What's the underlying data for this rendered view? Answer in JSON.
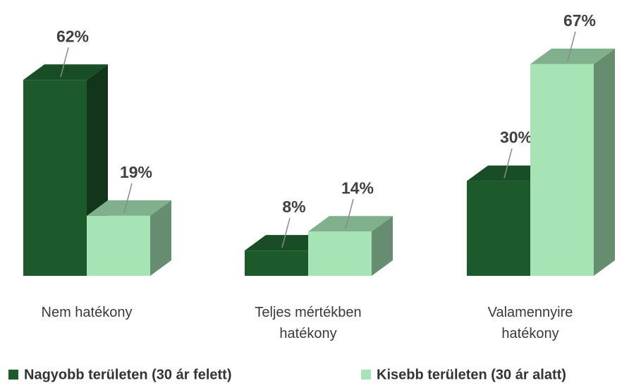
{
  "chart_data": {
    "type": "bar3d",
    "categories": [
      "Nem hatékony",
      "Teljes mértékben hatékony",
      "Valamennyire hatékony"
    ],
    "series": [
      {
        "name": "Nagyobb területen (30 ár felett)",
        "color": "#1c5a2c",
        "values": [
          62,
          8,
          30
        ],
        "value_labels": [
          "62%",
          "8%",
          "30%"
        ]
      },
      {
        "name": "Kisebb területen (30 ár alatt)",
        "color": "#a6e4b6",
        "values": [
          19,
          14,
          67
        ],
        "value_labels": [
          "19%",
          "14%",
          "67%"
        ]
      }
    ],
    "legend": "bottom"
  }
}
